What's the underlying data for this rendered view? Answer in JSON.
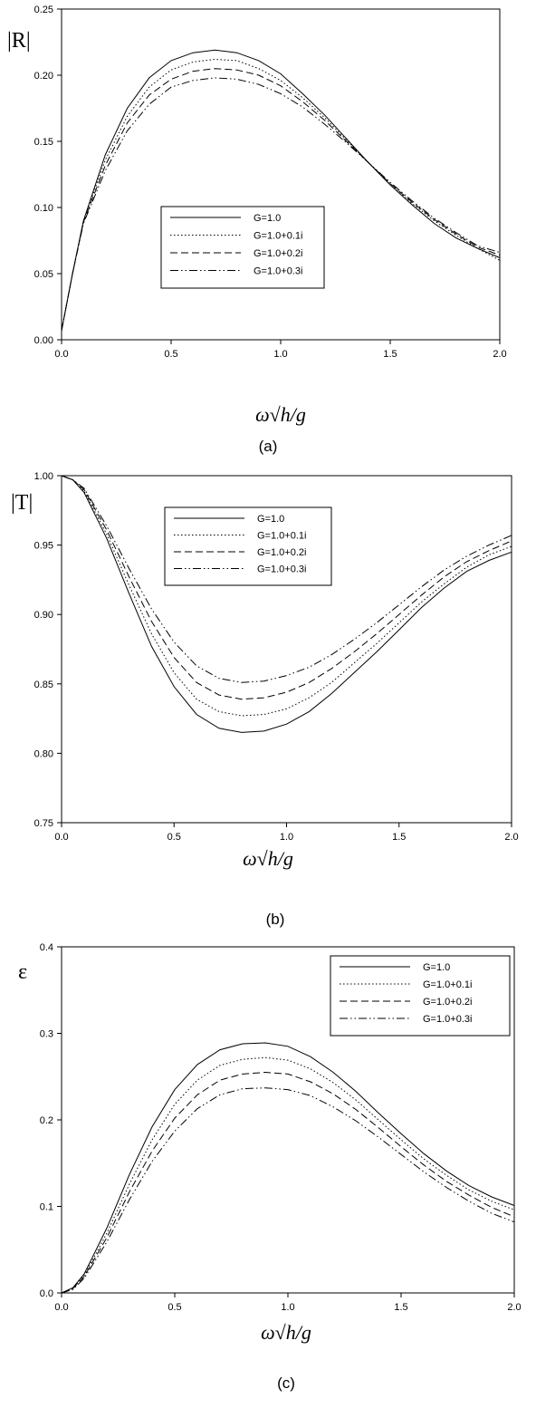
{
  "figure": {
    "captions": [
      "(a)",
      "(b)",
      "(c)"
    ]
  },
  "chart_data": [
    {
      "type": "line",
      "ylabel": "|R|",
      "xlabel": "ω√h/g",
      "caption": "(a)",
      "xlim": [
        0.0,
        2.0
      ],
      "ylim": [
        0.0,
        0.25
      ],
      "xticks": [
        "0.0",
        "0.5",
        "1.0",
        "1.5",
        "2.0"
      ],
      "yticks": [
        "0.00",
        "0.05",
        "0.10",
        "0.15",
        "0.20",
        "0.25"
      ],
      "legend_position": "center-left",
      "x": [
        0.0,
        0.05,
        0.1,
        0.2,
        0.3,
        0.4,
        0.5,
        0.6,
        0.7,
        0.8,
        0.9,
        1.0,
        1.1,
        1.2,
        1.3,
        1.4,
        1.5,
        1.6,
        1.7,
        1.8,
        1.9,
        2.0
      ],
      "series": [
        {
          "name": "G=1.0",
          "dash": "solid",
          "values": [
            0.007,
            0.05,
            0.09,
            0.14,
            0.175,
            0.198,
            0.211,
            0.217,
            0.219,
            0.217,
            0.211,
            0.201,
            0.186,
            0.17,
            0.152,
            0.134,
            0.117,
            0.102,
            0.088,
            0.077,
            0.069,
            0.062
          ]
        },
        {
          "name": "G=1.0+0.1i",
          "dash": "dotted",
          "values": [
            0.007,
            0.05,
            0.09,
            0.136,
            0.169,
            0.191,
            0.204,
            0.21,
            0.212,
            0.211,
            0.205,
            0.196,
            0.183,
            0.168,
            0.151,
            0.134,
            0.118,
            0.103,
            0.09,
            0.079,
            0.069,
            0.06
          ]
        },
        {
          "name": "G=1.0+0.2i",
          "dash": "dashed",
          "values": [
            0.007,
            0.05,
            0.089,
            0.132,
            0.164,
            0.185,
            0.197,
            0.203,
            0.205,
            0.204,
            0.2,
            0.192,
            0.18,
            0.166,
            0.15,
            0.134,
            0.118,
            0.104,
            0.091,
            0.08,
            0.07,
            0.064
          ]
        },
        {
          "name": "G=1.0+0.3i",
          "dash": "dashdotdot",
          "values": [
            0.007,
            0.05,
            0.088,
            0.128,
            0.158,
            0.178,
            0.191,
            0.196,
            0.198,
            0.197,
            0.193,
            0.186,
            0.176,
            0.163,
            0.149,
            0.134,
            0.119,
            0.105,
            0.092,
            0.081,
            0.071,
            0.066
          ]
        }
      ]
    },
    {
      "type": "line",
      "ylabel": "|T|",
      "xlabel": "ω√h/g",
      "caption": "(b)",
      "xlim": [
        0.0,
        2.0
      ],
      "ylim": [
        0.75,
        1.0
      ],
      "xticks": [
        "0.0",
        "0.5",
        "1.0",
        "1.5",
        "2.0"
      ],
      "yticks": [
        "0.75",
        "0.80",
        "0.85",
        "0.90",
        "0.95",
        "1.00"
      ],
      "legend_position": "top-center",
      "x": [
        0.0,
        0.05,
        0.1,
        0.2,
        0.3,
        0.4,
        0.5,
        0.6,
        0.7,
        0.8,
        0.9,
        1.0,
        1.1,
        1.2,
        1.3,
        1.4,
        1.5,
        1.6,
        1.7,
        1.8,
        1.9,
        2.0
      ],
      "series": [
        {
          "name": "G=1.0",
          "dash": "solid",
          "values": [
            1.0,
            0.997,
            0.988,
            0.955,
            0.915,
            0.877,
            0.848,
            0.828,
            0.818,
            0.815,
            0.816,
            0.821,
            0.83,
            0.843,
            0.858,
            0.873,
            0.889,
            0.905,
            0.919,
            0.931,
            0.939,
            0.945
          ]
        },
        {
          "name": "G=1.0+0.1i",
          "dash": "dotted",
          "values": [
            1.0,
            0.997,
            0.989,
            0.958,
            0.921,
            0.886,
            0.858,
            0.839,
            0.83,
            0.827,
            0.828,
            0.832,
            0.84,
            0.851,
            0.865,
            0.879,
            0.894,
            0.909,
            0.922,
            0.934,
            0.943,
            0.949
          ]
        },
        {
          "name": "G=1.0+0.2i",
          "dash": "dashed",
          "values": [
            1.0,
            0.997,
            0.99,
            0.961,
            0.927,
            0.895,
            0.869,
            0.851,
            0.842,
            0.839,
            0.84,
            0.844,
            0.851,
            0.861,
            0.873,
            0.886,
            0.9,
            0.914,
            0.927,
            0.938,
            0.946,
            0.953
          ]
        },
        {
          "name": "G=1.0+0.3i",
          "dash": "dashdotdot",
          "values": [
            1.0,
            0.997,
            0.991,
            0.964,
            0.933,
            0.904,
            0.88,
            0.863,
            0.854,
            0.851,
            0.852,
            0.856,
            0.862,
            0.871,
            0.882,
            0.894,
            0.907,
            0.92,
            0.932,
            0.942,
            0.95,
            0.957
          ]
        }
      ]
    },
    {
      "type": "line",
      "ylabel": "ε",
      "xlabel": "ω√h/g",
      "caption": "(c)",
      "xlim": [
        0.0,
        2.0
      ],
      "ylim": [
        0.0,
        0.4
      ],
      "xticks": [
        "0.0",
        "0.5",
        "1.0",
        "1.5",
        "2.0"
      ],
      "yticks": [
        "0.0",
        "0.1",
        "0.2",
        "0.3",
        "0.4"
      ],
      "legend_position": "top-right",
      "x": [
        0.0,
        0.05,
        0.1,
        0.2,
        0.3,
        0.4,
        0.5,
        0.6,
        0.7,
        0.8,
        0.9,
        1.0,
        1.1,
        1.2,
        1.3,
        1.4,
        1.5,
        1.6,
        1.7,
        1.8,
        1.9,
        2.0
      ],
      "series": [
        {
          "name": "G=1.0",
          "dash": "solid",
          "values": [
            0.0,
            0.006,
            0.022,
            0.075,
            0.137,
            0.192,
            0.235,
            0.264,
            0.281,
            0.288,
            0.289,
            0.285,
            0.273,
            0.255,
            0.233,
            0.208,
            0.184,
            0.161,
            0.141,
            0.124,
            0.111,
            0.101
          ]
        },
        {
          "name": "G=1.0+0.1i",
          "dash": "dotted",
          "values": [
            0.0,
            0.005,
            0.02,
            0.069,
            0.126,
            0.177,
            0.218,
            0.246,
            0.263,
            0.27,
            0.272,
            0.269,
            0.259,
            0.243,
            0.223,
            0.2,
            0.177,
            0.155,
            0.136,
            0.119,
            0.106,
            0.096
          ]
        },
        {
          "name": "G=1.0+0.2i",
          "dash": "dashed",
          "values": [
            0.0,
            0.005,
            0.019,
            0.064,
            0.117,
            0.164,
            0.202,
            0.229,
            0.246,
            0.253,
            0.255,
            0.253,
            0.244,
            0.23,
            0.212,
            0.191,
            0.169,
            0.148,
            0.129,
            0.113,
            0.099,
            0.088
          ]
        },
        {
          "name": "G=1.0+0.3i",
          "dash": "dashdotdot",
          "values": [
            0.0,
            0.004,
            0.017,
            0.059,
            0.108,
            0.152,
            0.187,
            0.213,
            0.229,
            0.236,
            0.237,
            0.235,
            0.228,
            0.215,
            0.199,
            0.18,
            0.16,
            0.14,
            0.122,
            0.106,
            0.092,
            0.082
          ]
        }
      ]
    }
  ]
}
